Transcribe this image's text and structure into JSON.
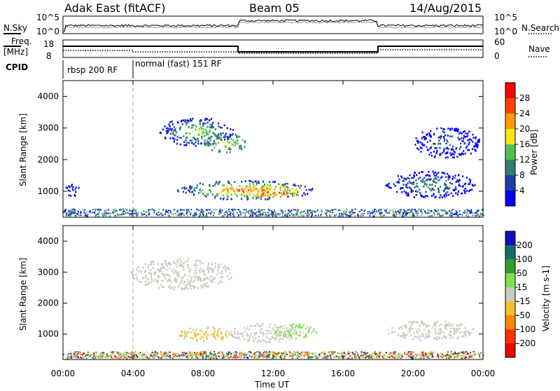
{
  "header": {
    "station": "Adak East (fitACF)",
    "beam": "Beam 05",
    "date": "14/Aug/2015"
  },
  "noise_panel": {
    "left_label": "N.Sky",
    "right_label": "N.Search",
    "left_ticks": [
      "10^5",
      "10^0"
    ],
    "right_ticks": [
      "10^5",
      "10^0"
    ]
  },
  "freq_panel": {
    "left_label": "Freq.",
    "left_unit": "[MHz]",
    "right_label": "Nave",
    "left_ticks": [
      "18",
      "8"
    ],
    "right_ticks": [
      "60",
      "0"
    ]
  },
  "cpid": {
    "label": "CPID",
    "segments": [
      "rbsp 200 RF",
      "normal (fast) 151 RF"
    ]
  },
  "x_axis": {
    "label": "Time UT",
    "ticks": [
      "00:00",
      "04:00",
      "08:00",
      "12:00",
      "16:00",
      "20:00",
      "00:00"
    ]
  },
  "power_panel": {
    "ylabel": "Slant Range [km]",
    "yticks": [
      "1000",
      "2000",
      "3000",
      "4000"
    ],
    "colorbar_label": "Power [dB]",
    "colorbar_ticks": [
      "4",
      "8",
      "12",
      "16",
      "20",
      "24",
      "28"
    ],
    "colors": [
      "#0000ff",
      "#1f3fa8",
      "#2f7f6f",
      "#52c152",
      "#f5e51a",
      "#ff9900",
      "#ff4400",
      "#ff0000"
    ]
  },
  "velocity_panel": {
    "ylabel": "Slant Range [km]",
    "yticks": [
      "1000",
      "2000",
      "3000",
      "4000"
    ],
    "colorbar_label": "Velocity [m s-1]",
    "colorbar_ticks": [
      "200",
      "100",
      "50",
      "15",
      "-15",
      "-50",
      "-100",
      "-200"
    ],
    "colors": [
      "#1010c0",
      "#1a6b6b",
      "#2f9e2f",
      "#80e050",
      "#cbcbc0",
      "#f5c030",
      "#ff8800",
      "#ff3300",
      "#ee0000"
    ]
  },
  "chart_data": [
    {
      "type": "heatmap",
      "title": "Power",
      "xlabel": "Time UT",
      "ylabel": "Slant Range [km]",
      "xlim": [
        "00:00",
        "24:00"
      ],
      "ylim": [
        180,
        4500
      ],
      "colorbar": "Power [dB]",
      "regions": [
        {
          "t": [
            5.5,
            9.7
          ],
          "range": [
            2400,
            3300
          ],
          "power_db": [
            4,
            22
          ]
        },
        {
          "t": [
            8.0,
            10.5
          ],
          "range": [
            2200,
            2800
          ],
          "power_db": [
            14,
            20
          ]
        },
        {
          "t": [
            0.1,
            0.9
          ],
          "range": [
            800,
            1200
          ],
          "power_db": [
            4,
            12
          ]
        },
        {
          "t": [
            6.5,
            14.3
          ],
          "range": [
            700,
            1300
          ],
          "power_db": [
            8,
            30
          ]
        },
        {
          "t": [
            10.3,
            13.6
          ],
          "range": [
            750,
            1150
          ],
          "power_db": [
            20,
            30
          ]
        },
        {
          "t": [
            18.4,
            23.5
          ],
          "range": [
            750,
            1600
          ],
          "power_db": [
            4,
            16
          ]
        },
        {
          "t": [
            20.0,
            23.8
          ],
          "range": [
            2000,
            3000
          ],
          "power_db": [
            4,
            12
          ]
        }
      ]
    },
    {
      "type": "heatmap",
      "title": "Velocity",
      "xlabel": "Time UT",
      "ylabel": "Slant Range [km]",
      "xlim": [
        "00:00",
        "24:00"
      ],
      "ylim": [
        180,
        4500
      ],
      "colorbar": "Velocity [m s-1]",
      "regions": [
        {
          "t": [
            3.8,
            9.7
          ],
          "range": [
            2400,
            3400
          ],
          "velocity_ms": [
            -15,
            15
          ]
        },
        {
          "t": [
            6.5,
            9.5
          ],
          "range": [
            700,
            1200
          ],
          "velocity_ms": [
            -50,
            -15
          ]
        },
        {
          "t": [
            9.5,
            13.4
          ],
          "range": [
            700,
            1300
          ],
          "velocity_ms": [
            -15,
            15
          ]
        },
        {
          "t": [
            12.0,
            14.5
          ],
          "range": [
            800,
            1300
          ],
          "velocity_ms": [
            15,
            50
          ]
        },
        {
          "t": [
            18.4,
            23.5
          ],
          "range": [
            750,
            1400
          ],
          "velocity_ms": [
            -15,
            15
          ]
        },
        {
          "t": [
            0.0,
            24.0
          ],
          "range": [
            180,
            400
          ],
          "velocity_ms": [
            -50,
            50
          ]
        }
      ]
    }
  ]
}
